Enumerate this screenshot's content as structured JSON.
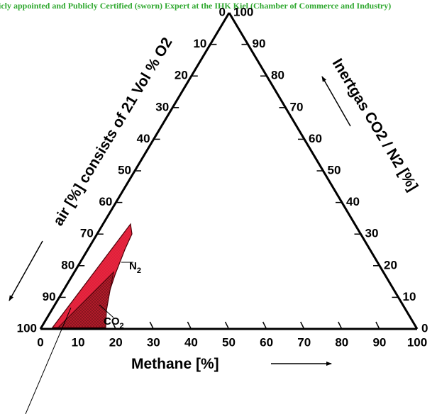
{
  "header": {
    "text": "Publicly appointed and Publicly Certified (sworn) Expert at the IHK Kiel (Chamber of Commerce and Industry)"
  },
  "diagram": {
    "air_axis_title": "air [%] consists of 21 Vol % O2",
    "inert_axis_title": "Inertgas CO2 / N2  [%]",
    "methane_axis_title": "Methane  [%]",
    "ticks": [
      "0",
      "10",
      "20",
      "30",
      "40",
      "50",
      "60",
      "70",
      "80",
      "90",
      "100"
    ],
    "regions": [
      {
        "name": "N2",
        "label_main": "N",
        "label_sub": "2",
        "fill": "#e8243e",
        "pattern": "dots"
      },
      {
        "name": "CO2",
        "label_main": "CO",
        "label_sub": "2",
        "fill": "#b81e2c",
        "pattern": "crosshatch"
      }
    ]
  }
}
